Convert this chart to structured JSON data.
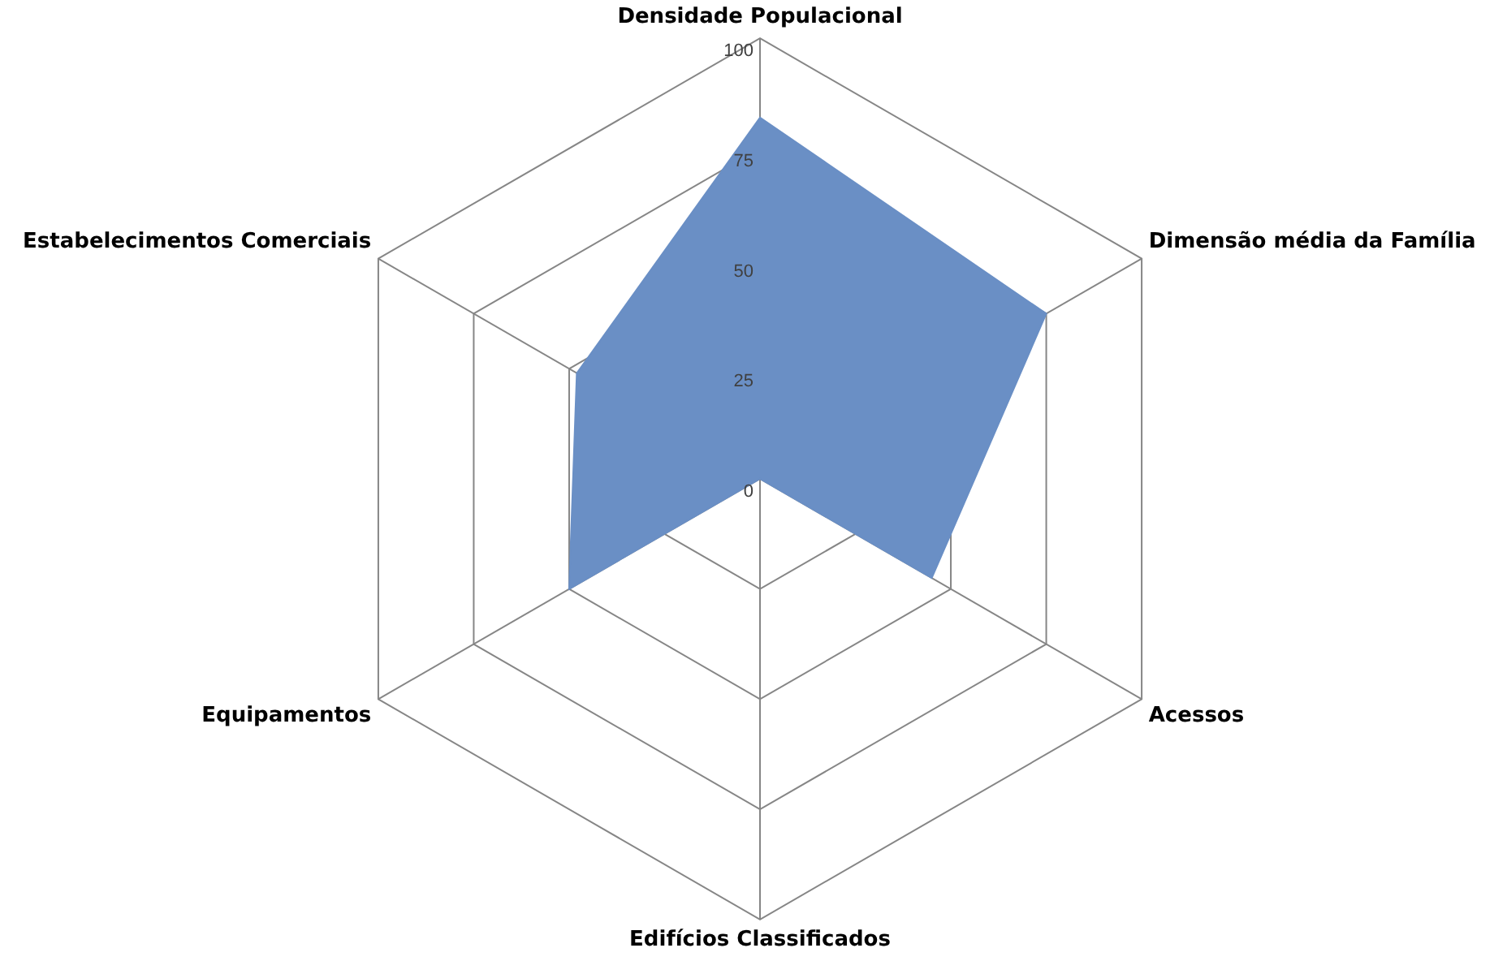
{
  "chart_data": {
    "type": "radar",
    "categories": [
      "Densidade Populacional",
      "Dimensão média da Família",
      "Acessos",
      "Edifícios Classificados",
      "Equipamentos",
      "Estabelecimentos Comerciais"
    ],
    "series": [
      {
        "color": "#6a8fc5",
        "values": [
          82,
          75,
          45,
          0,
          50,
          48
        ]
      }
    ],
    "ylim": [
      0,
      100
    ],
    "yticks": [
      0,
      25,
      50,
      75,
      100
    ],
    "grid": true,
    "legend": false,
    "marker": "none"
  }
}
